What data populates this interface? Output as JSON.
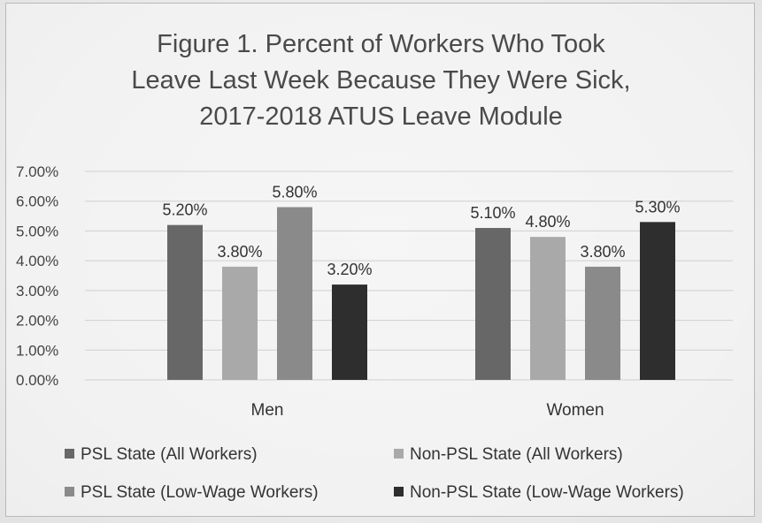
{
  "chart_data": {
    "type": "bar",
    "title_lines": [
      "Figure 1. Percent of Workers Who Took",
      "Leave Last Week Because They Were Sick,",
      "2017-2018 ATUS Leave Module"
    ],
    "categories": [
      "Men",
      "Women"
    ],
    "series": [
      {
        "name": "PSL State (All Workers)",
        "values": [
          5.2,
          5.1
        ],
        "labels": [
          "5.20%",
          "5.10%"
        ],
        "color": "#676767"
      },
      {
        "name": "Non-PSL State (All Workers)",
        "values": [
          3.8,
          4.8
        ],
        "labels": [
          "3.80%",
          "4.80%"
        ],
        "color": "#a9a9a9"
      },
      {
        "name": "PSL State (Low-Wage Workers)",
        "values": [
          5.8,
          3.8
        ],
        "labels": [
          "5.80%",
          "3.80%"
        ],
        "color": "#8a8a8a"
      },
      {
        "name": "Non-PSL State (Low-Wage Workers)",
        "values": [
          3.2,
          5.3
        ],
        "labels": [
          "3.20%",
          "5.30%"
        ],
        "color": "#2e2e2e"
      }
    ],
    "ylim": [
      0,
      7
    ],
    "yticks": [
      "0.00%",
      "1.00%",
      "2.00%",
      "3.00%",
      "4.00%",
      "5.00%",
      "6.00%",
      "7.00%"
    ],
    "grid": true,
    "legend_position": "bottom"
  }
}
